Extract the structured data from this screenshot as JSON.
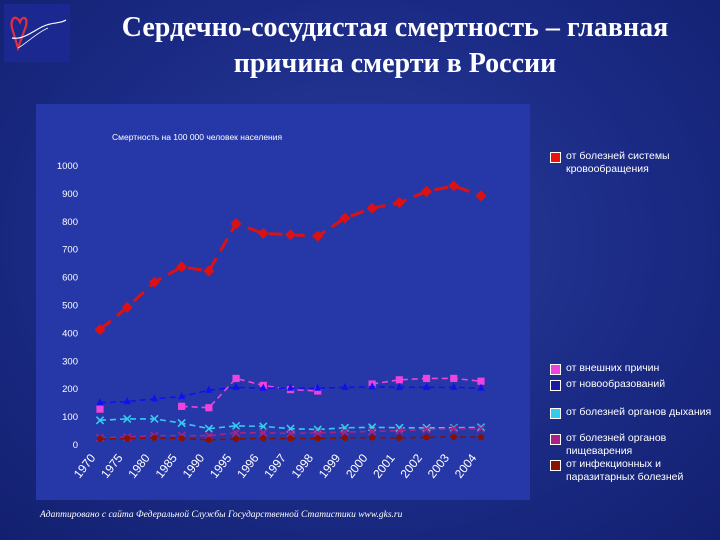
{
  "header": {
    "title_line1": "Сердечно-сосудистая смертность – главная",
    "title_line2": "причина смерти в России"
  },
  "footer": {
    "source": "Адаптировано с сайта Федеральной Службы Государственной Статистики www.gks.ru"
  },
  "chart_data": {
    "type": "line",
    "subtitle": "Смертность на 100 000 человек населения",
    "xlabel": "",
    "ylabel": "",
    "categories": [
      "1970",
      "1975",
      "1980",
      "1985",
      "1990",
      "1995",
      "1996",
      "1997",
      "1998",
      "1999",
      "2000",
      "2001",
      "2002",
      "2003",
      "2004"
    ],
    "ylim": [
      0,
      1000
    ],
    "yticks": [
      0,
      100,
      200,
      300,
      400,
      500,
      600,
      700,
      800,
      900,
      1000
    ],
    "grid": false,
    "legend_position": "right",
    "series": [
      {
        "name": "от болезней системы кровообращения",
        "color": "#dd1111",
        "marker": "diamond",
        "values": [
          410,
          490,
          580,
          635,
          620,
          790,
          755,
          750,
          745,
          810,
          845,
          865,
          905,
          925,
          890
        ]
      },
      {
        "name": "от внешних причин",
        "color": "#ee44dd",
        "marker": "square",
        "values": [
          125,
          null,
          null,
          135,
          130,
          235,
          210,
          195,
          190,
          null,
          215,
          230,
          235,
          235,
          225
        ]
      },
      {
        "name": "от новообразований",
        "color": "#1111ee",
        "marker": "triangle",
        "values": [
          148,
          152,
          162,
          170,
          193,
          203,
          200,
          200,
          200,
          203,
          205,
          203,
          203,
          203,
          200
        ]
      },
      {
        "name": "от болезней органов дыхания",
        "color": "#33ccee",
        "marker": "x",
        "values": [
          85,
          90,
          90,
          75,
          55,
          65,
          63,
          55,
          52,
          58,
          60,
          58,
          58,
          58,
          60
        ]
      },
      {
        "name": "от болезней органов пищеварения",
        "color": "#aa2288",
        "marker": "x",
        "values": [
          22,
          25,
          30,
          30,
          30,
          40,
          40,
          38,
          40,
          43,
          45,
          48,
          52,
          55,
          55
        ]
      },
      {
        "name": "от инфекционных и паразитарных болезней",
        "color": "#881100",
        "marker": "circle",
        "values": [
          18,
          20,
          22,
          20,
          15,
          18,
          20,
          20,
          20,
          22,
          23,
          22,
          24,
          25,
          24
        ]
      }
    ]
  },
  "legend": {
    "items": [
      {
        "label": "от болезней системы кровообращения",
        "color": "#ee1111"
      },
      {
        "label": "от внешних причин",
        "color": "#ee44dd"
      },
      {
        "label": "от новообразований",
        "color": "#1a1aa0"
      },
      {
        "label": "от болезней органов дыхания",
        "color": "#33ccee"
      },
      {
        "label": "от болезней органов пищеварения",
        "color": "#aa2288"
      },
      {
        "label": "от инфекционных и паразитарных болезней",
        "color": "#881100"
      }
    ]
  }
}
